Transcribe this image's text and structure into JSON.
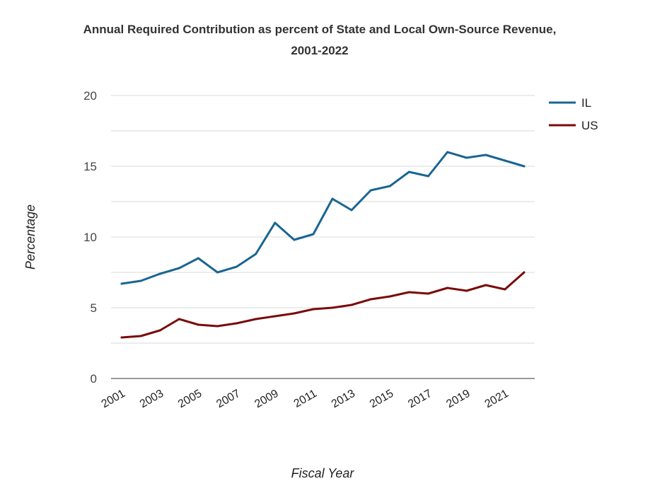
{
  "chart_data": {
    "type": "line",
    "title_line1": "Annual Required Contribution as percent of State and Local Own-Source Revenue,",
    "title_line2": "2001-2022",
    "xlabel": "Fiscal Year",
    "ylabel": "Percentage",
    "x": [
      2001,
      2002,
      2003,
      2004,
      2005,
      2006,
      2007,
      2008,
      2009,
      2010,
      2011,
      2012,
      2013,
      2014,
      2015,
      2016,
      2017,
      2018,
      2019,
      2020,
      2021,
      2022
    ],
    "x_tick_labels": [
      "2001",
      "2003",
      "2005",
      "2007",
      "2009",
      "2011",
      "2013",
      "2015",
      "2017",
      "2019",
      "2021"
    ],
    "ylim": [
      0,
      20
    ],
    "y_ticks": [
      0,
      5,
      10,
      15,
      20
    ],
    "grid": true,
    "legend_position": "right",
    "series": [
      {
        "name": "IL",
        "color": "#1a6592",
        "values": [
          6.7,
          6.9,
          7.4,
          7.8,
          8.5,
          7.5,
          7.9,
          8.8,
          11.0,
          9.8,
          10.2,
          12.7,
          11.9,
          13.3,
          13.6,
          14.6,
          14.3,
          16.0,
          15.6,
          15.8,
          15.4,
          15.0
        ]
      },
      {
        "name": "US",
        "color": "#7a0a0a",
        "values": [
          2.9,
          3.0,
          3.4,
          4.2,
          3.8,
          3.7,
          3.9,
          4.2,
          4.4,
          4.6,
          4.9,
          5.0,
          5.2,
          5.6,
          5.8,
          6.1,
          6.0,
          6.4,
          6.2,
          6.6,
          6.3,
          7.5
        ]
      }
    ]
  }
}
